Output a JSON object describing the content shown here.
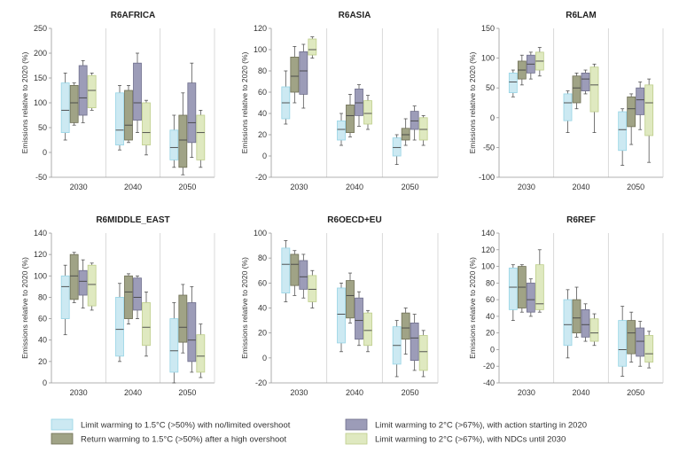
{
  "colors": {
    "series": [
      "#cce9f2",
      "#a0a386",
      "#9c9cb8",
      "#dfe9c0"
    ],
    "stroke": [
      "#96d4e5",
      "#6f6f55",
      "#6f6f8c",
      "#bdcd8a"
    ],
    "axis": "#999999",
    "grid": "#d0d0d0",
    "whisker": "#555555",
    "median": "#444444"
  },
  "legend": {
    "items": [
      "Limit warming to 1.5°C (>50%) with no/limited overshoot",
      "Limit warming to 2°C (>67%), with action starting in 2020",
      "Return warming to 1.5°C (>50%) after a high overshoot",
      "Limit warming to 2°C (>67%), with NDCs until 2030"
    ]
  },
  "chart_data": [
    {
      "type": "boxplot",
      "title": "R6AFRICA",
      "ylabel": "Emissions relative to 2020 (%)",
      "categories": [
        "2030",
        "2040",
        "2050"
      ],
      "ylim": [
        -50,
        250
      ],
      "yticks": [
        -50,
        0,
        50,
        100,
        150,
        200,
        250
      ],
      "grid": "vertical",
      "series": [
        {
          "name": "Limit warming to 1.5°C (>50%) with no/limited overshoot",
          "boxes": [
            [
              25,
              40,
              85,
              140,
              160
            ],
            [
              5,
              15,
              45,
              120,
              135
            ],
            [
              -30,
              -15,
              10,
              45,
              75
            ]
          ]
        },
        {
          "name": "Return warming to 1.5°C (>50%) after a high overshoot",
          "boxes": [
            [
              55,
              60,
              100,
              135,
              140
            ],
            [
              20,
              25,
              55,
              125,
              135
            ],
            [
              -45,
              -30,
              25,
              75,
              120
            ]
          ]
        },
        {
          "name": "Limit warming to 2°C (>67%), with action starting in 2020",
          "boxes": [
            [
              60,
              75,
              110,
              175,
              185
            ],
            [
              40,
              65,
              100,
              180,
              200
            ],
            [
              -10,
              20,
              60,
              140,
              180
            ]
          ]
        },
        {
          "name": "Limit warming to 2°C (>67%), with NDCs until 2030",
          "boxes": [
            [
              85,
              90,
              125,
              155,
              160
            ],
            [
              -5,
              15,
              40,
              100,
              105
            ],
            [
              -30,
              -15,
              40,
              75,
              85
            ]
          ]
        }
      ]
    },
    {
      "type": "boxplot",
      "title": "R6ASIA",
      "ylabel": "Emissions relative to 2020 (%)",
      "categories": [
        "2030",
        "2040",
        "2050"
      ],
      "ylim": [
        -20,
        120
      ],
      "yticks": [
        -20,
        0,
        20,
        40,
        60,
        80,
        100,
        120
      ],
      "grid": "vertical",
      "series": [
        {
          "name": "Limit warming to 1.5°C (>50%) with no/limited overshoot",
          "boxes": [
            [
              30,
              35,
              50,
              65,
              80
            ],
            [
              10,
              15,
              25,
              33,
              40
            ],
            [
              -8,
              0,
              8,
              17,
              20
            ]
          ]
        },
        {
          "name": "Return warming to 1.5°C (>50%) after a high overshoot",
          "boxes": [
            [
              50,
              60,
              75,
              93,
              103
            ],
            [
              18,
              22,
              38,
              48,
              58
            ],
            [
              10,
              15,
              20,
              26,
              35
            ]
          ]
        },
        {
          "name": "Limit warming to 2°C (>67%), with action starting in 2020",
          "boxes": [
            [
              45,
              58,
              80,
              98,
              105
            ],
            [
              28,
              38,
              50,
              63,
              67
            ],
            [
              15,
              25,
              33,
              42,
              47
            ]
          ]
        },
        {
          "name": "Limit warming to 2°C (>67%), with NDCs until 2030",
          "boxes": [
            [
              92,
              95,
              100,
              110,
              112
            ],
            [
              25,
              30,
              40,
              52,
              57
            ],
            [
              10,
              15,
              25,
              36,
              38
            ]
          ]
        }
      ]
    },
    {
      "type": "boxplot",
      "title": "R6LAM",
      "ylabel": "Emissions relative to 2020 (%)",
      "categories": [
        "2030",
        "2040",
        "2050"
      ],
      "ylim": [
        -100,
        150
      ],
      "yticks": [
        -100,
        -50,
        0,
        50,
        100,
        150
      ],
      "grid": "vertical",
      "series": [
        {
          "name": "Limit warming to 1.5°C (>50%) with no/limited overshoot",
          "boxes": [
            [
              35,
              42,
              60,
              75,
              80
            ],
            [
              -25,
              -5,
              25,
              40,
              45
            ],
            [
              -80,
              -55,
              -20,
              10,
              15
            ]
          ]
        },
        {
          "name": "Return warming to 1.5°C (>50%) after a high overshoot",
          "boxes": [
            [
              55,
              65,
              80,
              95,
              105
            ],
            [
              15,
              25,
              50,
              70,
              75
            ],
            [
              -45,
              -15,
              15,
              35,
              40
            ]
          ]
        },
        {
          "name": "Limit warming to 2°C (>67%), with action starting in 2020",
          "boxes": [
            [
              65,
              75,
              90,
              105,
              110
            ],
            [
              40,
              45,
              65,
              75,
              80
            ],
            [
              -20,
              5,
              30,
              50,
              60
            ]
          ]
        },
        {
          "name": "Limit warming to 2°C (>67%), with NDCs until 2030",
          "boxes": [
            [
              70,
              80,
              95,
              110,
              118
            ],
            [
              -25,
              10,
              55,
              85,
              90
            ],
            [
              -75,
              -30,
              25,
              55,
              65
            ]
          ]
        }
      ]
    },
    {
      "type": "boxplot",
      "title": "R6MIDDLE_EAST",
      "ylabel": "Emissions relative to 2020 (%)",
      "categories": [
        "2030",
        "2040",
        "2050"
      ],
      "ylim": [
        0,
        140
      ],
      "yticks": [
        0,
        20,
        40,
        60,
        80,
        100,
        120,
        140
      ],
      "grid": "vertical",
      "series": [
        {
          "name": "Limit warming to 1.5°C (>50%) with no/limited overshoot",
          "boxes": [
            [
              45,
              60,
              90,
              100,
              110
            ],
            [
              20,
              25,
              50,
              80,
              93
            ],
            [
              0,
              10,
              30,
              60,
              75
            ]
          ]
        },
        {
          "name": "Return warming to 1.5°C (>50%) after a high overshoot",
          "boxes": [
            [
              75,
              78,
              100,
              120,
              122
            ],
            [
              55,
              60,
              85,
              100,
              102
            ],
            [
              28,
              38,
              52,
              82,
              92
            ]
          ]
        },
        {
          "name": "Limit warming to 2°C (>67%), with action starting in 2020",
          "boxes": [
            [
              70,
              82,
              95,
              105,
              115
            ],
            [
              60,
              68,
              80,
              98,
              100
            ],
            [
              10,
              20,
              40,
              75,
              90
            ]
          ]
        },
        {
          "name": "Limit warming to 2°C (>67%), with NDCs until 2030",
          "boxes": [
            [
              68,
              72,
              92,
              110,
              112
            ],
            [
              25,
              35,
              52,
              75,
              85
            ],
            [
              5,
              10,
              25,
              45,
              55
            ]
          ]
        }
      ]
    },
    {
      "type": "boxplot",
      "title": "R6OECD+EU",
      "ylabel": "Emissions relative to 2020 (%)",
      "categories": [
        "2030",
        "2040",
        "2050"
      ],
      "ylim": [
        -20,
        100
      ],
      "yticks": [
        -20,
        0,
        20,
        40,
        60,
        80,
        100
      ],
      "grid": "vertical",
      "series": [
        {
          "name": "Limit warming to 1.5°C (>50%) with no/limited overshoot",
          "boxes": [
            [
              45,
              52,
              75,
              88,
              94
            ],
            [
              5,
              12,
              35,
              56,
              60
            ],
            [
              -15,
              -5,
              10,
              25,
              30
            ]
          ]
        },
        {
          "name": "Return warming to 1.5°C (>50%) after a high overshoot",
          "boxes": [
            [
              50,
              58,
              75,
              83,
              86
            ],
            [
              28,
              32,
              50,
              62,
              68
            ],
            [
              3,
              15,
              24,
              36,
              40
            ]
          ]
        },
        {
          "name": "Limit warming to 2°C (>67%), with action starting in 2020",
          "boxes": [
            [
              48,
              55,
              65,
              78,
              83
            ],
            [
              10,
              15,
              30,
              48,
              53
            ],
            [
              -10,
              -2,
              16,
              28,
              35
            ]
          ]
        },
        {
          "name": "Limit warming to 2°C (>67%), with NDCs until 2030",
          "boxes": [
            [
              40,
              45,
              55,
              66,
              70
            ],
            [
              5,
              10,
              22,
              36,
              38
            ],
            [
              -15,
              -10,
              5,
              18,
              22
            ]
          ]
        }
      ]
    },
    {
      "type": "boxplot",
      "title": "R6REF",
      "ylabel": "Emissions relative to 2020 (%)",
      "categories": [
        "2030",
        "2040",
        "2050"
      ],
      "ylim": [
        -40,
        140
      ],
      "yticks": [
        -40,
        -20,
        0,
        20,
        40,
        60,
        80,
        100,
        120,
        140
      ],
      "grid": "vertical",
      "series": [
        {
          "name": "Limit warming to 1.5°C (>50%) with no/limited overshoot",
          "boxes": [
            [
              35,
              48,
              75,
              98,
              102
            ],
            [
              -10,
              5,
              30,
              60,
              72
            ],
            [
              -32,
              -20,
              0,
              35,
              52
            ]
          ]
        },
        {
          "name": "Return warming to 1.5°C (>50%) after a high overshoot",
          "boxes": [
            [
              45,
              50,
              75,
              100,
              102
            ],
            [
              15,
              20,
              38,
              60,
              75
            ],
            [
              -15,
              -5,
              20,
              35,
              45
            ]
          ]
        },
        {
          "name": "Limit warming to 2°C (>67%), with action starting in 2020",
          "boxes": [
            [
              40,
              45,
              60,
              80,
              85
            ],
            [
              10,
              15,
              30,
              48,
              55
            ],
            [
              -20,
              -8,
              10,
              26,
              34
            ]
          ]
        },
        {
          "name": "Limit warming to 2°C (>67%), with NDCs until 2030",
          "boxes": [
            [
              45,
              48,
              55,
              102,
              120
            ],
            [
              5,
              10,
              20,
              37,
              43
            ],
            [
              -22,
              -15,
              -5,
              17,
              22
            ]
          ]
        }
      ]
    }
  ]
}
